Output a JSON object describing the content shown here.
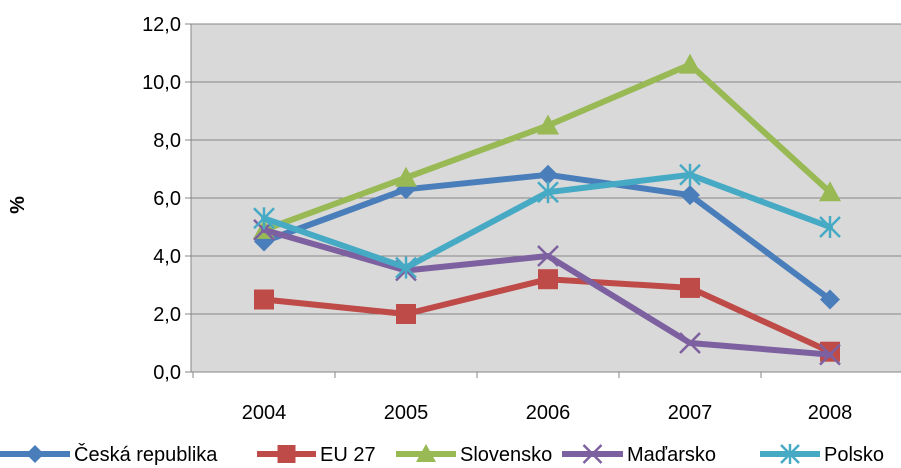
{
  "chart_data": {
    "type": "line",
    "title": "",
    "xlabel": "",
    "ylabel": "%",
    "categories": [
      "2004",
      "2005",
      "2006",
      "2007",
      "2008"
    ],
    "y_tick_labels": [
      "0,0",
      "2,0",
      "4,0",
      "6,0",
      "8,0",
      "10,0",
      "12,0"
    ],
    "ylim": [
      0,
      12
    ],
    "grid": true,
    "legend_position": "bottom",
    "series": [
      {
        "name": "Česká republika",
        "values": [
          4.5,
          6.3,
          6.8,
          6.1,
          2.5
        ],
        "color": "#4a7ebb",
        "marker": "diamond"
      },
      {
        "name": "EU 27",
        "values": [
          2.5,
          2.0,
          3.2,
          2.9,
          0.7
        ],
        "color": "#be4b48",
        "marker": "square"
      },
      {
        "name": "Slovensko",
        "values": [
          4.9,
          6.7,
          8.5,
          10.6,
          6.2
        ],
        "color": "#98b954",
        "marker": "triangle"
      },
      {
        "name": "Maďarsko",
        "values": [
          4.9,
          3.5,
          4.0,
          1.0,
          0.6
        ],
        "color": "#7d60a0",
        "marker": "x"
      },
      {
        "name": "Polsko",
        "values": [
          5.3,
          3.6,
          6.2,
          6.8,
          5.0
        ],
        "color": "#46aac5",
        "marker": "star"
      }
    ]
  }
}
